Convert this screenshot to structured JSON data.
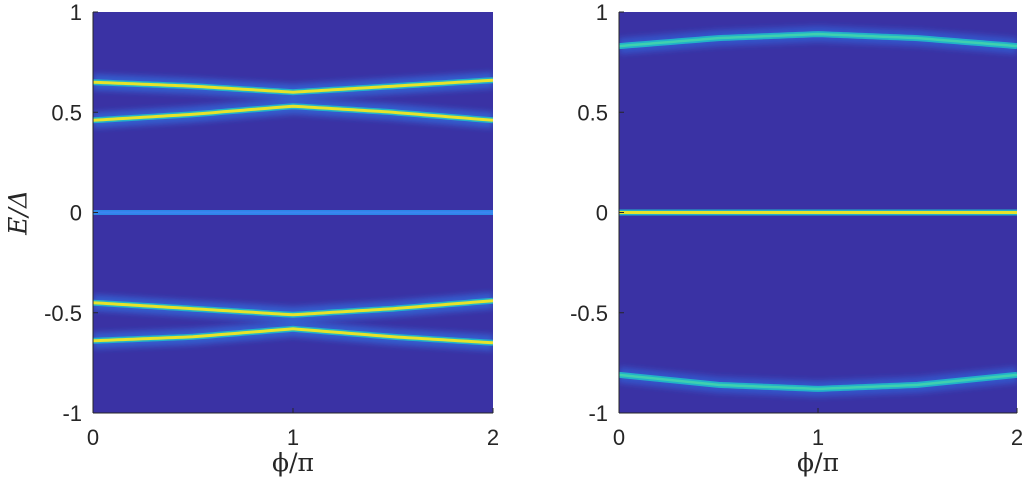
{
  "chart_data": [
    {
      "type": "heatmap",
      "panel": "left",
      "xlabel": "ϕ/π",
      "ylabel": "E/Δ",
      "xlim": [
        0,
        2
      ],
      "ylim": [
        -1,
        1
      ],
      "xticks": [
        "0",
        "1",
        "2"
      ],
      "yticks": [
        "1",
        "0.5",
        "0",
        "-0.5",
        "-1"
      ],
      "colormap": "parula",
      "background_color": "#3A32A4",
      "levels": [
        {
          "name": "",
          "values": [
            [
              0,
              0.65
            ],
            [
              0.5,
              0.63
            ],
            [
              1,
              0.6
            ],
            [
              1.5,
              0.63
            ],
            [
              2,
              0.66
            ]
          ],
          "intensity": 1.0
        },
        {
          "name": "",
          "values": [
            [
              0,
              0.46
            ],
            [
              0.5,
              0.49
            ],
            [
              1,
              0.53
            ],
            [
              1.5,
              0.5
            ],
            [
              2,
              0.46
            ]
          ],
          "intensity": 1.0
        },
        {
          "name": "",
          "values": [
            [
              0,
              0.0
            ],
            [
              1,
              0.0
            ],
            [
              2,
              0.0
            ]
          ],
          "intensity": 0.35
        },
        {
          "name": "",
          "values": [
            [
              0,
              -0.45
            ],
            [
              0.5,
              -0.48
            ],
            [
              1,
              -0.51
            ],
            [
              1.5,
              -0.48
            ],
            [
              2,
              -0.44
            ]
          ],
          "intensity": 1.0
        },
        {
          "name": "",
          "values": [
            [
              0,
              -0.64
            ],
            [
              0.5,
              -0.62
            ],
            [
              1,
              -0.58
            ],
            [
              1.5,
              -0.62
            ],
            [
              2,
              -0.65
            ]
          ],
          "intensity": 1.0
        }
      ]
    },
    {
      "type": "heatmap",
      "panel": "right",
      "xlabel": "ϕ/π",
      "ylabel": "",
      "xlim": [
        0,
        2
      ],
      "ylim": [
        -1,
        1
      ],
      "xticks": [
        "0",
        "1",
        "2"
      ],
      "yticks": [
        "1",
        "0.5",
        "0",
        "-0.5",
        "-1"
      ],
      "colormap": "parula",
      "background_color": "#3A32A4",
      "levels": [
        {
          "name": "",
          "values": [
            [
              0,
              0.83
            ],
            [
              0.5,
              0.87
            ],
            [
              1,
              0.89
            ],
            [
              1.5,
              0.87
            ],
            [
              2,
              0.83
            ]
          ],
          "intensity": 0.6
        },
        {
          "name": "",
          "values": [
            [
              0,
              0.0
            ],
            [
              1,
              0.0
            ],
            [
              2,
              0.0
            ]
          ],
          "intensity": 1.0
        },
        {
          "name": "",
          "values": [
            [
              0,
              -0.81
            ],
            [
              0.5,
              -0.86
            ],
            [
              1,
              -0.88
            ],
            [
              1.5,
              -0.86
            ],
            [
              2,
              -0.81
            ]
          ],
          "intensity": 0.6
        }
      ]
    }
  ]
}
